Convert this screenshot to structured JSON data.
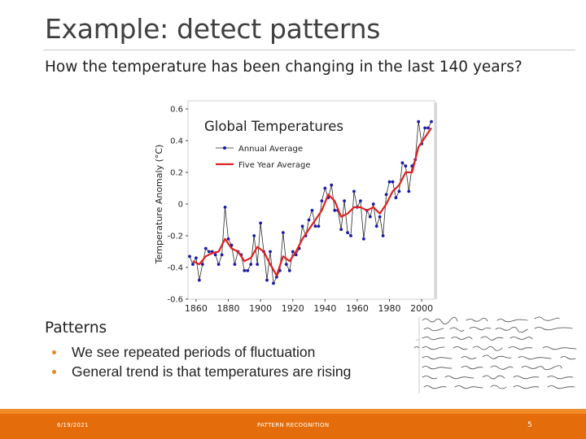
{
  "slide": {
    "title": "Example: detect patterns",
    "subtitle": "How the temperature has been changing in the last 140 years?",
    "patterns_heading": "Patterns",
    "bullets": [
      "We see repeated periods of fluctuation",
      "General trend is that temperatures are rising"
    ],
    "footer": {
      "date": "6/19/2021",
      "center": "PATTERN RECOGNITION",
      "page": "5"
    },
    "colors": {
      "accent": "#e46c0a",
      "annual": "#1a1aa8",
      "five_year": "#e02020"
    }
  },
  "chart_data": {
    "type": "line",
    "title": "Global Temperatures",
    "xlabel": "",
    "ylabel": "Temperature Anomaly (°C)",
    "xlim": [
      1855,
      2008
    ],
    "ylim": [
      -0.6,
      0.6
    ],
    "yticks": [
      "0.6",
      "0.4",
      "0.2",
      "0",
      "-0.2",
      "-0.4",
      "-0.6"
    ],
    "xticks": [
      "1860",
      "1880",
      "1900",
      "1920",
      "1940",
      "1960",
      "1980",
      "2000"
    ],
    "legend": [
      "Annual Average",
      "Five Year Average"
    ],
    "series": [
      {
        "name": "Annual Average",
        "x": [
          1856,
          1858,
          1860,
          1862,
          1864,
          1866,
          1868,
          1870,
          1872,
          1874,
          1876,
          1878,
          1880,
          1882,
          1884,
          1886,
          1888,
          1890,
          1892,
          1894,
          1896,
          1898,
          1900,
          1902,
          1904,
          1906,
          1908,
          1910,
          1912,
          1914,
          1916,
          1918,
          1920,
          1922,
          1924,
          1926,
          1928,
          1930,
          1932,
          1934,
          1936,
          1938,
          1940,
          1942,
          1944,
          1946,
          1948,
          1950,
          1952,
          1954,
          1956,
          1958,
          1960,
          1962,
          1964,
          1966,
          1968,
          1970,
          1972,
          1974,
          1976,
          1978,
          1980,
          1982,
          1984,
          1986,
          1988,
          1990,
          1992,
          1994,
          1996,
          1998,
          2000,
          2002,
          2004,
          2006
        ],
        "values": [
          -0.33,
          -0.38,
          -0.34,
          -0.48,
          -0.38,
          -0.28,
          -0.3,
          -0.3,
          -0.32,
          -0.38,
          -0.32,
          -0.02,
          -0.22,
          -0.26,
          -0.38,
          -0.3,
          -0.32,
          -0.42,
          -0.42,
          -0.38,
          -0.2,
          -0.38,
          -0.12,
          -0.3,
          -0.48,
          -0.3,
          -0.5,
          -0.46,
          -0.42,
          -0.18,
          -0.38,
          -0.42,
          -0.3,
          -0.32,
          -0.28,
          -0.14,
          -0.2,
          -0.1,
          -0.04,
          -0.14,
          -0.14,
          0.02,
          0.1,
          0.04,
          0.12,
          -0.04,
          -0.04,
          -0.16,
          0.02,
          -0.18,
          -0.2,
          0.08,
          -0.02,
          0.02,
          -0.22,
          -0.04,
          -0.08,
          0.0,
          -0.14,
          -0.08,
          -0.2,
          0.06,
          0.14,
          0.14,
          0.04,
          0.08,
          0.26,
          0.24,
          0.08,
          0.24,
          0.28,
          0.52,
          0.38,
          0.48,
          0.48,
          0.52
        ]
      },
      {
        "name": "Five Year Average",
        "x": [
          1858,
          1862,
          1866,
          1870,
          1874,
          1878,
          1882,
          1886,
          1890,
          1894,
          1898,
          1902,
          1906,
          1910,
          1914,
          1918,
          1922,
          1926,
          1930,
          1934,
          1938,
          1942,
          1946,
          1950,
          1954,
          1958,
          1962,
          1966,
          1970,
          1974,
          1978,
          1982,
          1986,
          1990,
          1994,
          1998,
          2002,
          2006
        ],
        "values": [
          -0.36,
          -0.38,
          -0.33,
          -0.31,
          -0.3,
          -0.22,
          -0.28,
          -0.3,
          -0.36,
          -0.34,
          -0.27,
          -0.3,
          -0.38,
          -0.45,
          -0.33,
          -0.36,
          -0.3,
          -0.22,
          -0.16,
          -0.1,
          -0.04,
          0.06,
          0.02,
          -0.08,
          -0.06,
          -0.02,
          -0.02,
          -0.04,
          -0.02,
          -0.06,
          0.0,
          0.08,
          0.12,
          0.2,
          0.2,
          0.36,
          0.42,
          0.48
        ]
      }
    ]
  }
}
